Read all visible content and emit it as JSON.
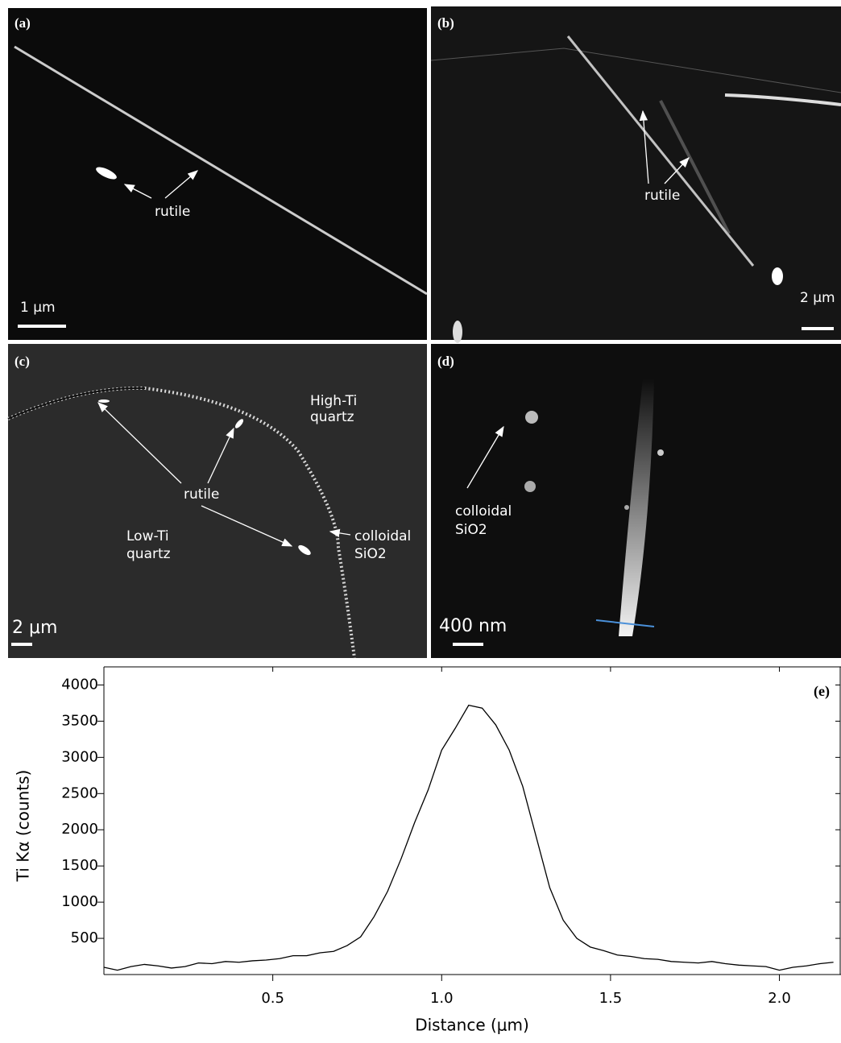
{
  "panels": [
    {
      "label": "(a)",
      "annotations": [
        "rutile"
      ],
      "scale_bar": "1 μm"
    },
    {
      "label": "(b)",
      "annotations": [
        "rutile"
      ],
      "scale_bar": "2 μm"
    },
    {
      "label": "(c)",
      "annotations": [
        "High-Ti",
        "quartz",
        "rutile",
        "Low-Ti",
        "quartz",
        "colloidal",
        "SiO2"
      ],
      "scale_bar": "2 μm"
    },
    {
      "label": "(d)",
      "annotations": [
        "colloidal",
        "SiO2"
      ],
      "scale_bar": "400 nm"
    }
  ],
  "chart_data": {
    "type": "line",
    "panel_label": "(e)",
    "x_label": "Distance (μm)",
    "y_label": "Ti Kα (counts)",
    "color": "#000000",
    "x": [
      0,
      0.04,
      0.08,
      0.12,
      0.16,
      0.2,
      0.24,
      0.28,
      0.32,
      0.36,
      0.4,
      0.44,
      0.48,
      0.52,
      0.56,
      0.6,
      0.64,
      0.68,
      0.72,
      0.76,
      0.8,
      0.84,
      0.88,
      0.92,
      0.96,
      1.0,
      1.04,
      1.08,
      1.12,
      1.16,
      1.2,
      1.24,
      1.28,
      1.32,
      1.36,
      1.4,
      1.44,
      1.48,
      1.52,
      1.56,
      1.6,
      1.64,
      1.68,
      1.72,
      1.76,
      1.8,
      1.84,
      1.88,
      1.92,
      1.96,
      2.0,
      2.04,
      2.08,
      2.12,
      2.16
    ],
    "values": [
      100,
      60,
      110,
      140,
      120,
      90,
      110,
      160,
      150,
      180,
      170,
      190,
      200,
      220,
      260,
      260,
      300,
      320,
      400,
      520,
      800,
      1150,
      1600,
      2100,
      2550,
      3100,
      3400,
      3720,
      3680,
      3450,
      3100,
      2600,
      1900,
      1200,
      750,
      500,
      380,
      330,
      270,
      250,
      220,
      210,
      180,
      170,
      160,
      180,
      150,
      130,
      120,
      110,
      60,
      100,
      120,
      150,
      170
    ],
    "xlim": [
      0,
      2.18
    ],
    "ylim": [
      0,
      4250
    ],
    "xticks": [
      0.5,
      {
        "value": 1,
        "label": "1.0"
      },
      1.5,
      {
        "value": 2,
        "label": "2.0"
      }
    ],
    "yticks": [
      500,
      1000,
      1500,
      2000,
      2500,
      3000,
      3500,
      4000
    ]
  }
}
